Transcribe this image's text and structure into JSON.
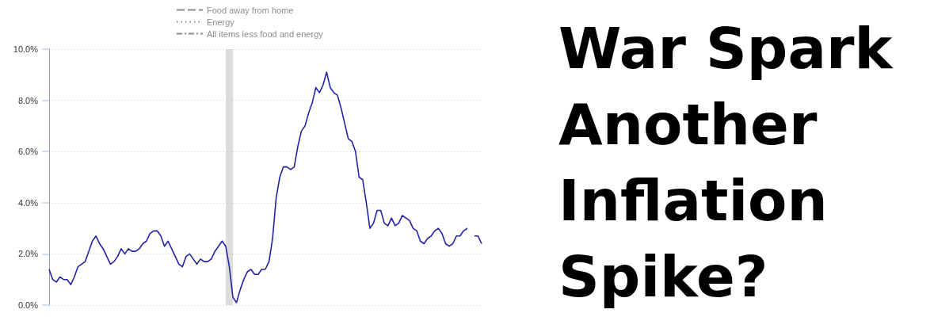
{
  "chart_data": {
    "type": "line",
    "title": "War Spark Another Inflation Spike?",
    "categories": [
      null,
      null,
      null,
      null,
      null,
      null,
      null,
      null,
      null,
      null,
      null,
      null,
      null,
      null,
      null,
      null,
      null,
      null,
      null,
      null,
      null,
      null,
      null,
      null,
      null,
      null,
      null,
      null,
      null,
      null,
      null,
      null,
      null,
      null,
      null,
      null,
      null,
      null,
      null,
      null,
      null,
      null,
      null,
      null,
      null,
      null,
      null,
      null,
      null,
      null,
      null,
      null,
      null,
      null,
      null,
      null,
      null,
      null,
      null,
      null,
      null,
      null,
      null,
      null,
      null,
      null,
      null,
      null,
      null,
      null,
      null,
      null,
      null,
      null,
      null,
      null,
      null,
      null,
      null,
      null,
      null,
      null,
      null,
      null,
      null,
      null,
      null,
      null,
      null,
      null,
      null,
      null,
      null,
      null,
      null,
      null,
      null,
      null,
      null,
      null,
      null,
      null,
      null,
      null,
      null,
      null,
      null,
      null,
      null,
      null,
      null,
      null,
      null,
      null,
      null,
      null,
      null,
      null,
      null,
      null,
      null
    ],
    "series": [
      {
        "color": "#2323a8",
        "values": [
          1.4,
          1.0,
          0.9,
          1.1,
          1.0,
          1.0,
          0.8,
          1.1,
          1.5,
          1.6,
          1.7,
          2.1,
          2.5,
          2.7,
          2.4,
          2.2,
          1.9,
          1.6,
          1.7,
          1.9,
          2.2,
          2.0,
          2.2,
          2.1,
          2.1,
          2.2,
          2.4,
          2.5,
          2.8,
          2.9,
          2.9,
          2.7,
          2.3,
          2.5,
          2.2,
          1.9,
          1.6,
          1.5,
          1.9,
          2.0,
          1.8,
          1.6,
          1.8,
          1.7,
          1.7,
          1.8,
          2.1,
          2.3,
          2.5,
          2.3,
          1.5,
          0.3,
          0.1,
          0.6,
          1.0,
          1.3,
          1.4,
          1.2,
          1.2,
          1.4,
          1.4,
          1.7,
          2.6,
          4.2,
          5.0,
          5.4,
          5.4,
          5.3,
          5.4,
          6.2,
          6.8,
          7.0,
          7.5,
          7.9,
          8.5,
          8.3,
          8.6,
          9.1,
          8.5,
          8.3,
          8.2,
          7.7,
          7.1,
          6.5,
          6.4,
          6.0,
          5.0,
          4.9,
          4.0,
          3.0,
          3.2,
          3.7,
          3.7,
          3.2,
          3.1,
          3.4,
          3.1,
          3.2,
          3.5,
          3.4,
          3.3,
          3.0,
          2.9,
          2.5,
          2.4,
          2.6,
          2.7,
          2.9,
          3.0,
          2.8,
          2.4,
          2.3,
          2.4,
          2.7,
          2.7,
          2.9,
          3.0,
          null,
          2.7,
          2.7,
          2.4
        ]
      },
      {
        "name": "Food away from home",
        "color": "#8c8c8c",
        "line_style": "dashed",
        "values": [
          null,
          null,
          null,
          null,
          null,
          null,
          null,
          null,
          null,
          null,
          null,
          null,
          null,
          null,
          null,
          null,
          null,
          null,
          null,
          null,
          null,
          null,
          null,
          null,
          null,
          null,
          null,
          null,
          null,
          null,
          null,
          null,
          null,
          null,
          null,
          null,
          null,
          null,
          null,
          null,
          null,
          null,
          null,
          null,
          null,
          null,
          null,
          null,
          null,
          null,
          null,
          null,
          null,
          null,
          null,
          null,
          null,
          null,
          null,
          null,
          null,
          null,
          null,
          null,
          null,
          null,
          null,
          null,
          null,
          null,
          null,
          null,
          null,
          null,
          null,
          null,
          null,
          null,
          null,
          null,
          null,
          null,
          null,
          null,
          null,
          null,
          null,
          null,
          null,
          null,
          null,
          null,
          null,
          null,
          null,
          null,
          null,
          null,
          null,
          null,
          null,
          null,
          null,
          null,
          null,
          null,
          null,
          null,
          null,
          null,
          null,
          null,
          null,
          null,
          null,
          null,
          null,
          null,
          null,
          null,
          null
        ]
      },
      {
        "name": "Energy",
        "color": "#8c8c8c",
        "line_style": "dotted",
        "values": [
          null,
          null,
          null,
          null,
          null,
          null,
          null,
          null,
          null,
          null,
          null,
          null,
          null,
          null,
          null,
          null,
          null,
          null,
          null,
          null,
          null,
          null,
          null,
          null,
          null,
          null,
          null,
          null,
          null,
          null,
          null,
          null,
          null,
          null,
          null,
          null,
          null,
          null,
          null,
          null,
          null,
          null,
          null,
          null,
          null,
          null,
          null,
          null,
          null,
          null,
          null,
          null,
          null,
          null,
          null,
          null,
          null,
          null,
          null,
          null,
          null,
          null,
          null,
          null,
          null,
          null,
          null,
          null,
          null,
          null,
          null,
          null,
          null,
          null,
          null,
          null,
          null,
          null,
          null,
          null,
          null,
          null,
          null,
          null,
          null,
          null,
          null,
          null,
          null,
          null,
          null,
          null,
          null,
          null,
          null,
          null,
          null,
          null,
          null,
          null,
          null,
          null,
          null,
          null,
          null,
          null,
          null,
          null,
          null,
          null,
          null,
          null,
          null,
          null,
          null,
          null,
          null,
          null,
          null,
          null,
          null
        ]
      },
      {
        "name": "All items less food and energy",
        "color": "#8c8c8c",
        "line_style": "dashdot",
        "values": [
          null,
          null,
          null,
          null,
          null,
          null,
          null,
          null,
          null,
          null,
          null,
          null,
          null,
          null,
          null,
          null,
          null,
          null,
          null,
          null,
          null,
          null,
          null,
          null,
          null,
          null,
          null,
          null,
          null,
          null,
          null,
          null,
          null,
          null,
          null,
          null,
          null,
          null,
          null,
          null,
          null,
          null,
          null,
          null,
          null,
          null,
          null,
          null,
          null,
          null,
          null,
          null,
          null,
          null,
          null,
          null,
          null,
          null,
          null,
          null,
          null,
          null,
          null,
          null,
          null,
          null,
          null,
          null,
          null,
          null,
          null,
          null,
          null,
          null,
          null,
          null,
          null,
          null,
          null,
          null,
          null,
          null,
          null,
          null,
          null,
          null,
          null,
          null,
          null,
          null,
          null,
          null,
          null,
          null,
          null,
          null,
          null,
          null,
          null,
          null,
          null,
          null,
          null,
          null,
          null,
          null,
          null,
          null,
          null,
          null,
          null,
          null,
          null,
          null,
          null,
          null,
          null,
          null,
          null,
          null,
          null
        ]
      }
    ],
    "ylim": [
      0,
      10
    ],
    "yticks": [
      {
        "value": 0,
        "label": "0.0%"
      },
      {
        "value": 2,
        "label": "2.0%"
      },
      {
        "value": 4,
        "label": "4.0%"
      },
      {
        "value": 6,
        "label": "6.0%"
      },
      {
        "value": 8,
        "label": "8.0%"
      },
      {
        "value": 10,
        "label": "10.0%"
      }
    ],
    "grid": "y",
    "legend": "top",
    "marker": "none",
    "tick_labels": "y"
  }
}
